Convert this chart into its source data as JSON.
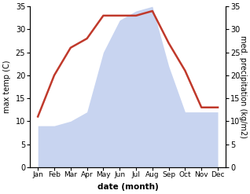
{
  "months": [
    "Jan",
    "Feb",
    "Mar",
    "Apr",
    "May",
    "Jun",
    "Jul",
    "Aug",
    "Sep",
    "Oct",
    "Nov",
    "Dec"
  ],
  "temperature": [
    11,
    20,
    26,
    28,
    33,
    33,
    33,
    34,
    27,
    21,
    13,
    13
  ],
  "precipitation": [
    9,
    9,
    10,
    12,
    25,
    32,
    34,
    35,
    22,
    12,
    12,
    12
  ],
  "temp_color": "#c0392b",
  "precip_fill_color": "#c8d4f0",
  "ylabel_left": "max temp (C)",
  "ylabel_right": "med. precipitation (kg/m2)",
  "xlabel": "date (month)",
  "ylim_left": [
    0,
    35
  ],
  "ylim_right": [
    0,
    35
  ],
  "yticks_left": [
    0,
    5,
    10,
    15,
    20,
    25,
    30,
    35
  ],
  "yticks_right": [
    0,
    5,
    10,
    15,
    20,
    25,
    30,
    35
  ],
  "bg_color": "#ffffff",
  "line_width": 1.8,
  "tick_fontsize": 7,
  "label_fontsize": 7,
  "xlabel_fontsize": 7.5
}
